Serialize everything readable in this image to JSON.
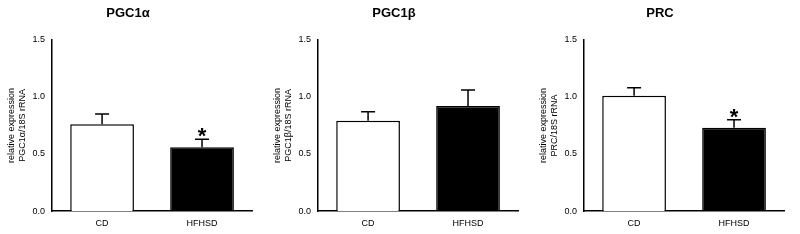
{
  "chart_data": [
    {
      "type": "bar",
      "title": "PGC1α",
      "y_label": [
        "relative expression",
        "PGC1α/18S rRNA"
      ],
      "categories": [
        "CD",
        "HFHSD"
      ],
      "values": [
        0.76,
        0.56
      ],
      "errors": [
        0.09,
        0.07
      ],
      "colors": [
        "#ffffff",
        "#000000"
      ],
      "ylim": [
        0,
        1.5
      ],
      "yticks": [
        {
          "value": 0,
          "label": "0.0"
        },
        {
          "value": 0.5,
          "label": "0.5"
        },
        {
          "value": 1,
          "label": "1.0"
        },
        {
          "value": 1.5,
          "label": "1.5"
        }
      ],
      "grid": false,
      "annotations": [
        {
          "category": "HFHSD",
          "text": "*"
        }
      ]
    },
    {
      "type": "bar",
      "title": "PGC1β",
      "y_label": [
        "relative expression",
        "PGC1β/18S rRNA"
      ],
      "categories": [
        "CD",
        "HFHSD"
      ],
      "values": [
        0.79,
        0.92
      ],
      "errors": [
        0.08,
        0.14
      ],
      "colors": [
        "#ffffff",
        "#000000"
      ],
      "ylim": [
        0,
        1.5
      ],
      "yticks": [
        {
          "value": 0,
          "label": "0.0"
        },
        {
          "value": 0.5,
          "label": "0.5"
        },
        {
          "value": 1,
          "label": "1.0"
        },
        {
          "value": 1.5,
          "label": "1.5"
        }
      ],
      "grid": false,
      "annotations": []
    },
    {
      "type": "bar",
      "title": "PRC",
      "y_label": [
        "relative expression",
        "PRC/18S rRNA"
      ],
      "categories": [
        "CD",
        "HFHSD"
      ],
      "values": [
        1.01,
        0.73
      ],
      "errors": [
        0.07,
        0.07
      ],
      "colors": [
        "#ffffff",
        "#000000"
      ],
      "ylim": [
        0,
        1.5
      ],
      "yticks": [
        {
          "value": 0,
          "label": "0.0"
        },
        {
          "value": 0.5,
          "label": "0.5"
        },
        {
          "value": 1,
          "label": "1.0"
        },
        {
          "value": 1.5,
          "label": "1.5"
        }
      ],
      "grid": false,
      "annotations": [
        {
          "category": "HFHSD",
          "text": "*"
        }
      ]
    }
  ]
}
